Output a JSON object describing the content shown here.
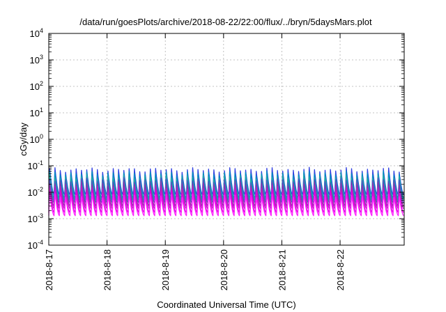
{
  "chart_data": {
    "type": "line",
    "title": "/data/run/goesPlots/archive/2018-08-22/22:00/flux/../bryn/5daysMars.plot",
    "xlabel": "Coordinated Universal Time (UTC)",
    "ylabel": "cGy/day",
    "yscale": "log",
    "ylim": [
      0.0001,
      10000
    ],
    "xlim": [
      "2018-08-17",
      "2018-08-23"
    ],
    "grid": true,
    "x_ticks": [
      "2018-8-17",
      "2018-8-18",
      "2018-8-19",
      "2018-8-20",
      "2018-8-21",
      "2018-8-22"
    ],
    "y_ticks": [
      {
        "value": 0.0001,
        "base": "10",
        "exp": "-4"
      },
      {
        "value": 0.001,
        "base": "10",
        "exp": "-3"
      },
      {
        "value": 0.01,
        "base": "10",
        "exp": "-2"
      },
      {
        "value": 0.1,
        "base": "10",
        "exp": "-1"
      },
      {
        "value": 1,
        "base": "10",
        "exp": "0"
      },
      {
        "value": 10,
        "base": "10",
        "exp": "1"
      },
      {
        "value": 100,
        "base": "10",
        "exp": "2"
      },
      {
        "value": 1000,
        "base": "10",
        "exp": "3"
      },
      {
        "value": 10000,
        "base": "10",
        "exp": "4"
      }
    ],
    "oscillation": {
      "cycles_per_day": 11,
      "days": 6.1
    },
    "series": [
      {
        "color": "#3040e0",
        "peak": 0.075,
        "trough": 0.008
      },
      {
        "color": "#0090c0",
        "peak": 0.055,
        "trough": 0.006
      },
      {
        "color": "#20b0a0",
        "peak": 0.04,
        "trough": 0.005
      },
      {
        "color": "#5050c0",
        "peak": 0.03,
        "trough": 0.004
      },
      {
        "color": "#9030b0",
        "peak": 0.022,
        "trough": 0.003
      },
      {
        "color": "#c020c0",
        "peak": 0.016,
        "trough": 0.0024
      },
      {
        "color": "#e000e0",
        "peak": 0.011,
        "trough": 0.0017
      },
      {
        "color": "#ff20ff",
        "peak": 0.008,
        "trough": 0.0013
      }
    ]
  }
}
